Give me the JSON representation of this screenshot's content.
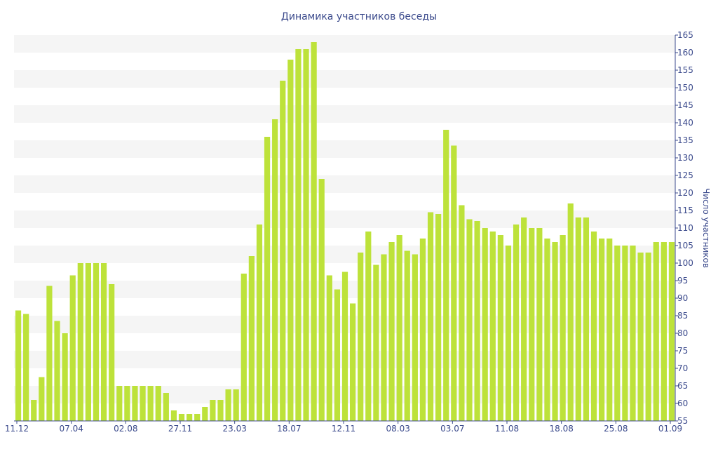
{
  "chart_data": {
    "type": "bar",
    "title": "Динамика участников беседы",
    "xlabel": "",
    "ylabel": "Число участников",
    "ylim": [
      55,
      165
    ],
    "y_ticks": [
      55,
      60,
      65,
      70,
      75,
      80,
      85,
      90,
      95,
      100,
      105,
      110,
      115,
      120,
      125,
      130,
      135,
      140,
      145,
      150,
      155,
      160,
      165
    ],
    "y_axis_side": "right",
    "grid": "alternating horizontal bands",
    "x_tick_labels": [
      "11.12",
      "07.04",
      "02.08",
      "27.11",
      "23.03",
      "18.07",
      "12.11",
      "08.03",
      "03.07",
      "11.08",
      "18.08",
      "25.08",
      "01.09"
    ],
    "series": [
      {
        "values": [
          86.5,
          85.5,
          61,
          67.5,
          93.5,
          83.5,
          80,
          96.5,
          100,
          100,
          100,
          100,
          94,
          65,
          65,
          65,
          65,
          65,
          65,
          63,
          58,
          57,
          57,
          57,
          59,
          61,
          61,
          64,
          64,
          97,
          102,
          111,
          136,
          141,
          152,
          158,
          161,
          161,
          163,
          124,
          96.5,
          92.5,
          97.5,
          88.5,
          103,
          109,
          99.5,
          102.5,
          106,
          108,
          103.5,
          102.5,
          107,
          114.5,
          114,
          138,
          133.5,
          116.5,
          112.5,
          112,
          110,
          109,
          108,
          105,
          111,
          113,
          110,
          110,
          107,
          106,
          108,
          117,
          113,
          113,
          109,
          107,
          107,
          105,
          105,
          105,
          103,
          103,
          106,
          106,
          106
        ]
      }
    ],
    "bar_color": "#bde23a",
    "band_color": "#f5f5f5",
    "text_color": "#3b4a8c"
  }
}
